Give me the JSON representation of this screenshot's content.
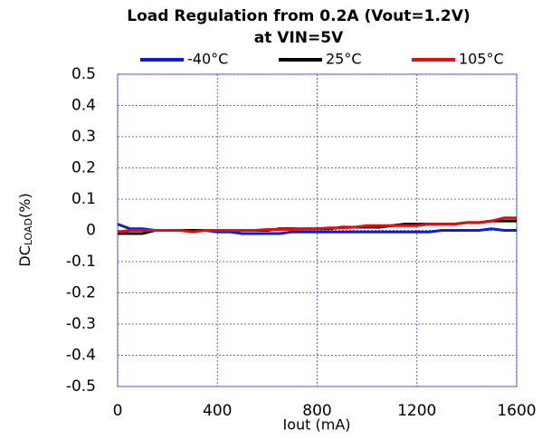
{
  "chart_data": {
    "type": "line",
    "title": [
      "Load Regulation from 0.2A (Vout=1.2V)",
      "at VIN=5V"
    ],
    "xlabel": "Iout (mA)",
    "ylabel": [
      "DC",
      "LOAD",
      "(%)"
    ],
    "x": [
      0,
      50,
      100,
      150,
      200,
      250,
      300,
      350,
      400,
      450,
      500,
      550,
      600,
      650,
      700,
      750,
      800,
      850,
      900,
      950,
      1000,
      1050,
      1100,
      1150,
      1200,
      1250,
      1300,
      1350,
      1400,
      1450,
      1500,
      1550,
      1600
    ],
    "series": [
      {
        "name": "-40°C",
        "color": "#0a1ed6",
        "values": [
          0.02,
          0.005,
          0.005,
          0,
          0,
          0,
          0,
          0,
          -0.005,
          -0.005,
          -0.01,
          -0.01,
          -0.01,
          -0.01,
          -0.005,
          -0.005,
          -0.005,
          -0.005,
          -0.005,
          -0.005,
          -0.005,
          -0.005,
          -0.005,
          -0.005,
          -0.005,
          -0.005,
          0,
          0,
          0,
          0,
          0.005,
          0,
          0
        ]
      },
      {
        "name": "25°C",
        "color": "#000000",
        "values": [
          -0.01,
          -0.01,
          -0.01,
          0,
          0,
          0,
          0,
          0,
          0,
          0,
          0,
          0,
          0,
          0.005,
          0.005,
          0.005,
          0.005,
          0.005,
          0.01,
          0.01,
          0.01,
          0.01,
          0.015,
          0.02,
          0.02,
          0.02,
          0.02,
          0.02,
          0.025,
          0.025,
          0.03,
          0.03,
          0.03
        ]
      },
      {
        "name": "105°C",
        "color": "#e01010",
        "values": [
          -0.005,
          0,
          0,
          0,
          0,
          0,
          -0.005,
          0,
          0,
          0,
          0,
          0,
          0.003,
          0.003,
          0.003,
          0.005,
          0.005,
          0.008,
          0.008,
          0.01,
          0.015,
          0.015,
          0.015,
          0.015,
          0.015,
          0.02,
          0.02,
          0.02,
          0.025,
          0.025,
          0.03,
          0.04,
          0.04
        ]
      }
    ],
    "xlim": [
      0,
      1600
    ],
    "xticks": [
      0,
      400,
      800,
      1200,
      1600
    ],
    "ylim": [
      -0.5,
      0.5
    ],
    "yticks": [
      0.5,
      0.4,
      0.3,
      0.2,
      0.1,
      0,
      -0.1,
      -0.2,
      -0.3,
      -0.4,
      -0.5
    ],
    "grid": true,
    "legend": "top"
  }
}
